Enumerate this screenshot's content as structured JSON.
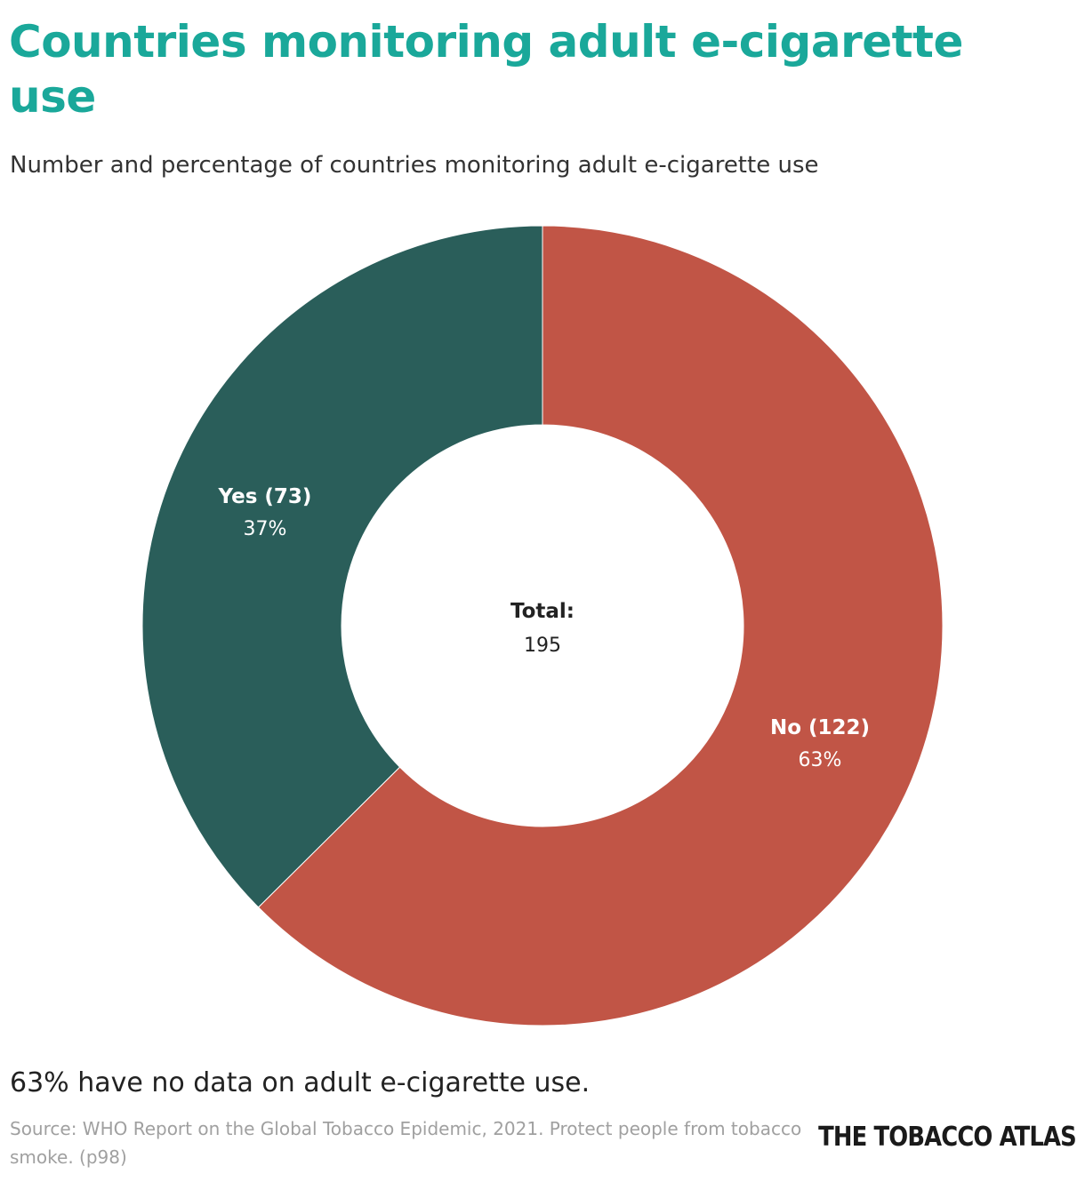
{
  "title": "Countries monitoring adult e-cigarette use",
  "subtitle": "Number and percentage of countries monitoring adult e-cigarette use",
  "note": "63% have no data on adult e-cigarette use.",
  "source": "Source: WHO Report on the Global Tobacco Epidemic, 2021. Protect people from tobacco smoke. (p98)",
  "logo_text": "THE TOBACCO ATLAS",
  "chart_data": {
    "type": "pie",
    "donut": true,
    "center_label": "Total:",
    "center_value": "195",
    "slices": [
      {
        "label": "No (122)",
        "value": 122,
        "percent": "63%",
        "color": "#c15546"
      },
      {
        "label": "Yes (73)",
        "value": 73,
        "percent": "37%",
        "color": "#2a5e5a"
      }
    ]
  }
}
